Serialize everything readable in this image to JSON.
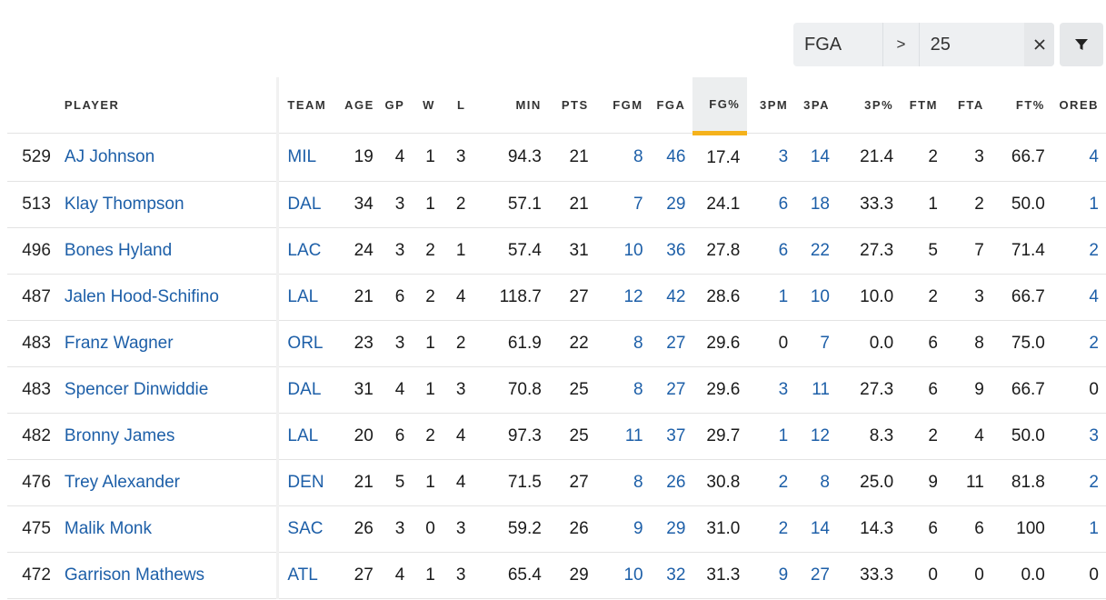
{
  "filter": {
    "stat": "FGA",
    "operator": ">",
    "value": "25",
    "clear_icon": "close-icon",
    "apply_icon": "filter-funnel-icon"
  },
  "colors": {
    "link": "#1d5fa8",
    "sort_accent": "#f5b21c",
    "sorted_header_bg": "#eceeef",
    "filter_bg": "#eef0f2"
  },
  "table": {
    "sorted_column": "FG%",
    "headers": [
      "",
      "PLAYER",
      "TEAM",
      "AGE",
      "GP",
      "W",
      "L",
      "MIN",
      "PTS",
      "FGM",
      "FGA",
      "FG%",
      "3PM",
      "3PA",
      "3P%",
      "FTM",
      "FTA",
      "FT%",
      "OREB"
    ],
    "rows": [
      [
        "529",
        "AJ Johnson",
        "MIL",
        "19",
        "4",
        "1",
        "3",
        "94.3",
        "21",
        "8",
        "46",
        "17.4",
        "3",
        "14",
        "21.4",
        "2",
        "3",
        "66.7",
        "4"
      ],
      [
        "513",
        "Klay Thompson",
        "DAL",
        "34",
        "3",
        "1",
        "2",
        "57.1",
        "21",
        "7",
        "29",
        "24.1",
        "6",
        "18",
        "33.3",
        "1",
        "2",
        "50.0",
        "1"
      ],
      [
        "496",
        "Bones Hyland",
        "LAC",
        "24",
        "3",
        "2",
        "1",
        "57.4",
        "31",
        "10",
        "36",
        "27.8",
        "6",
        "22",
        "27.3",
        "5",
        "7",
        "71.4",
        "2"
      ],
      [
        "487",
        "Jalen Hood-Schifino",
        "LAL",
        "21",
        "6",
        "2",
        "4",
        "118.7",
        "27",
        "12",
        "42",
        "28.6",
        "1",
        "10",
        "10.0",
        "2",
        "3",
        "66.7",
        "4"
      ],
      [
        "483",
        "Franz Wagner",
        "ORL",
        "23",
        "3",
        "1",
        "2",
        "61.9",
        "22",
        "8",
        "27",
        "29.6",
        "0",
        "7",
        "0.0",
        "6",
        "8",
        "75.0",
        "2"
      ],
      [
        "483",
        "Spencer Dinwiddie",
        "DAL",
        "31",
        "4",
        "1",
        "3",
        "70.8",
        "25",
        "8",
        "27",
        "29.6",
        "3",
        "11",
        "27.3",
        "6",
        "9",
        "66.7",
        "0"
      ],
      [
        "482",
        "Bronny James",
        "LAL",
        "20",
        "6",
        "2",
        "4",
        "97.3",
        "25",
        "11",
        "37",
        "29.7",
        "1",
        "12",
        "8.3",
        "2",
        "4",
        "50.0",
        "3"
      ],
      [
        "476",
        "Trey Alexander",
        "DEN",
        "21",
        "5",
        "1",
        "4",
        "71.5",
        "27",
        "8",
        "26",
        "30.8",
        "2",
        "8",
        "25.0",
        "9",
        "11",
        "81.8",
        "2"
      ],
      [
        "475",
        "Malik Monk",
        "SAC",
        "26",
        "3",
        "0",
        "3",
        "59.2",
        "26",
        "9",
        "29",
        "31.0",
        "2",
        "14",
        "14.3",
        "6",
        "6",
        "100",
        "1"
      ],
      [
        "472",
        "Garrison Mathews",
        "ATL",
        "27",
        "4",
        "1",
        "3",
        "65.4",
        "29",
        "10",
        "32",
        "31.3",
        "9",
        "27",
        "33.3",
        "0",
        "0",
        "0.0",
        "0"
      ]
    ]
  }
}
